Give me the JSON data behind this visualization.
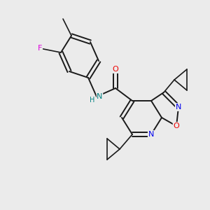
{
  "background_color": "#ebebeb",
  "bond_color": "#1a1a1a",
  "atom_colors": {
    "N": "#0000ee",
    "O": "#ee0000",
    "F": "#dd00dd",
    "NH": "#008080",
    "C": "#1a1a1a"
  },
  "figsize": [
    3.0,
    3.0
  ],
  "dpi": 100
}
